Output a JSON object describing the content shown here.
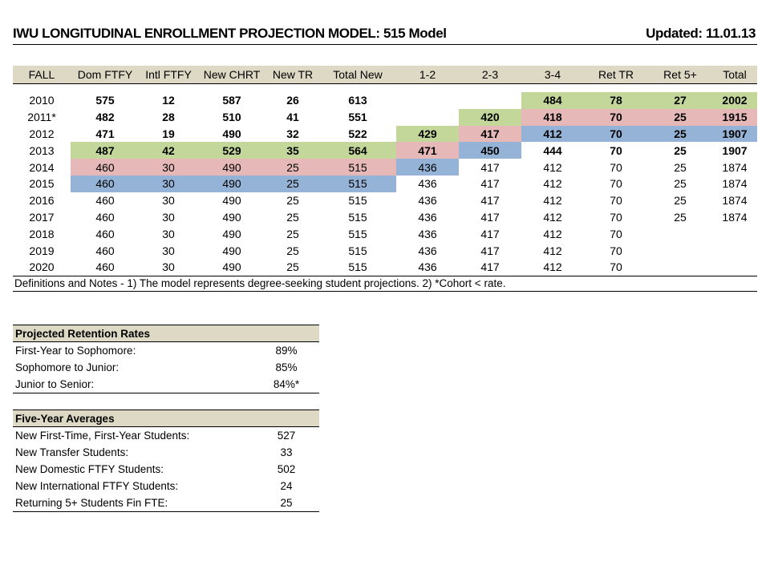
{
  "header": {
    "title": "IWU LONGITUDINAL ENROLLMENT PROJECTION MODEL: 515 Model",
    "updated": "Updated: 11.01.13"
  },
  "table": {
    "columns": [
      "FALL",
      "Dom FTFY",
      "Intl FTFY",
      "New CHRT",
      "New TR",
      "Total New",
      "1-2",
      "2-3",
      "3-4",
      "Ret TR",
      "Ret 5+",
      "Total"
    ],
    "rows": [
      {
        "bold": true,
        "cells": [
          "2010",
          "575",
          "12",
          "587",
          "26",
          "613",
          "",
          "",
          "484",
          "78",
          "27",
          "2002"
        ],
        "colors": [
          "",
          "",
          "",
          "",
          "",
          "",
          "",
          "",
          "g",
          "g",
          "g",
          "g"
        ]
      },
      {
        "bold": true,
        "cells": [
          "2011*",
          "482",
          "28",
          "510",
          "41",
          "551",
          "",
          "420",
          "418",
          "70",
          "25",
          "1915"
        ],
        "colors": [
          "",
          "",
          "",
          "",
          "",
          "",
          "",
          "g",
          "r",
          "r",
          "r",
          "r"
        ]
      },
      {
        "bold": true,
        "cells": [
          "2012",
          "471",
          "19",
          "490",
          "32",
          "522",
          "429",
          "417",
          "412",
          "70",
          "25",
          "1907"
        ],
        "colors": [
          "",
          "",
          "",
          "",
          "",
          "",
          "g",
          "r",
          "b",
          "b",
          "b",
          "b"
        ]
      },
      {
        "bold": true,
        "cells": [
          "2013",
          "487",
          "42",
          "529",
          "35",
          "564",
          "471",
          "450",
          "444",
          "70",
          "25",
          "1907"
        ],
        "colors": [
          "",
          "g",
          "g",
          "g",
          "g",
          "g",
          "r",
          "b",
          "",
          "",
          "",
          ""
        ]
      },
      {
        "bold": false,
        "cells": [
          "2014",
          "460",
          "30",
          "490",
          "25",
          "515",
          "436",
          "417",
          "412",
          "70",
          "25",
          "1874"
        ],
        "colors": [
          "",
          "r",
          "r",
          "r",
          "r",
          "r",
          "b",
          "",
          "",
          "",
          "",
          ""
        ]
      },
      {
        "bold": false,
        "cells": [
          "2015",
          "460",
          "30",
          "490",
          "25",
          "515",
          "436",
          "417",
          "412",
          "70",
          "25",
          "1874"
        ],
        "colors": [
          "",
          "b",
          "b",
          "b",
          "b",
          "b",
          "",
          "",
          "",
          "",
          "",
          ""
        ]
      },
      {
        "bold": false,
        "cells": [
          "2016",
          "460",
          "30",
          "490",
          "25",
          "515",
          "436",
          "417",
          "412",
          "70",
          "25",
          "1874"
        ],
        "colors": [
          "",
          "",
          "",
          "",
          "",
          "",
          "",
          "",
          "",
          "",
          "",
          ""
        ]
      },
      {
        "bold": false,
        "cells": [
          "2017",
          "460",
          "30",
          "490",
          "25",
          "515",
          "436",
          "417",
          "412",
          "70",
          "25",
          "1874"
        ],
        "colors": [
          "",
          "",
          "",
          "",
          "",
          "",
          "",
          "",
          "",
          "",
          "",
          ""
        ]
      },
      {
        "bold": false,
        "cells": [
          "2018",
          "460",
          "30",
          "490",
          "25",
          "515",
          "436",
          "417",
          "412",
          "70",
          "",
          ""
        ],
        "colors": [
          "",
          "",
          "",
          "",
          "",
          "",
          "",
          "",
          "",
          "",
          "",
          ""
        ]
      },
      {
        "bold": false,
        "cells": [
          "2019",
          "460",
          "30",
          "490",
          "25",
          "515",
          "436",
          "417",
          "412",
          "70",
          "",
          ""
        ],
        "colors": [
          "",
          "",
          "",
          "",
          "",
          "",
          "",
          "",
          "",
          "",
          "",
          ""
        ]
      },
      {
        "bold": false,
        "cells": [
          "2020",
          "460",
          "30",
          "490",
          "25",
          "515",
          "436",
          "417",
          "412",
          "70",
          "",
          ""
        ],
        "colors": [
          "",
          "",
          "",
          "",
          "",
          "",
          "",
          "",
          "",
          "",
          "",
          ""
        ]
      }
    ],
    "footnote": "Definitions and Notes - 1) The model represents degree-seeking student projections.  2) *Cohort < rate."
  },
  "colors": {
    "g": "#c4d79b",
    "r": "#e6b9b8",
    "b": "#95b3d7",
    "header": "#ddd9c4"
  },
  "retention": {
    "title": "Projected Retention Rates",
    "rows": [
      {
        "label": "First-Year to Sophomore:",
        "value": "89%"
      },
      {
        "label": "Sophomore to Junior:",
        "value": "85%"
      },
      {
        "label": "Junior to Senior:",
        "value": "84%*"
      }
    ]
  },
  "averages": {
    "title": "Five-Year Averages",
    "rows": [
      {
        "label": "New First-Time, First-Year Students:",
        "value": "527"
      },
      {
        "label": "New Transfer Students:",
        "value": "33"
      },
      {
        "label": "New Domestic FTFY Students:",
        "value": "502"
      },
      {
        "label": "New International FTFY Students:",
        "value": "24"
      },
      {
        "label": "Returning 5+ Students Fin FTE:",
        "value": "25"
      }
    ]
  }
}
